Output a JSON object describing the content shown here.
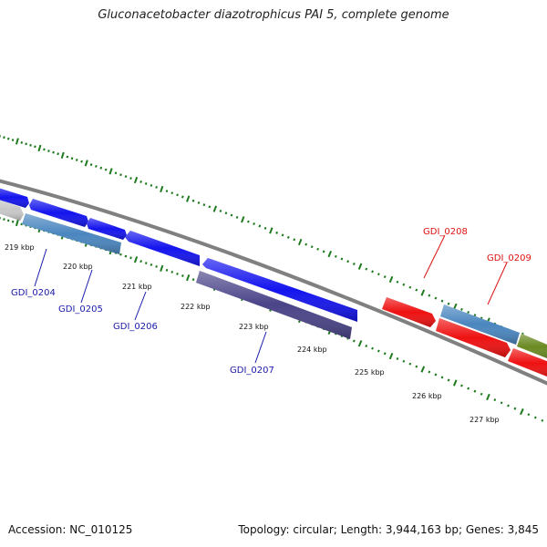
{
  "title": "Gluconacetobacter diazotrophicus PAI 5, complete genome",
  "footer": {
    "accession": "Accession: NC_010125",
    "summary": "Topology: circular; Length: 3,944,163 bp; Genes: 3,845"
  },
  "colors": {
    "blue_gene": "#1414ee",
    "steel_gene": "#4a86bf",
    "slate_gene": "#4a4488",
    "red_gene": "#ee1111",
    "olive_gene": "#6a8a22",
    "gray_gene": "#c8c8c8",
    "backbone": "#808080",
    "tick": "#1d7a1d",
    "label_blue": "#1a1aaa",
    "label_red": "#dd1111"
  },
  "kbp_ticks": [
    "219 kbp",
    "220 kbp",
    "221 kbp",
    "222 kbp",
    "223 kbp",
    "224 kbp",
    "225 kbp",
    "226 kbp",
    "227 kbp"
  ],
  "gene_labels": [
    {
      "name": "GDI_0204",
      "color": "blue"
    },
    {
      "name": "GDI_0205",
      "color": "blue"
    },
    {
      "name": "GDI_0206",
      "color": "blue"
    },
    {
      "name": "GDI_0207",
      "color": "blue"
    },
    {
      "name": "GDI_0208",
      "color": "red"
    },
    {
      "name": "GDI_0209",
      "color": "red"
    }
  ]
}
